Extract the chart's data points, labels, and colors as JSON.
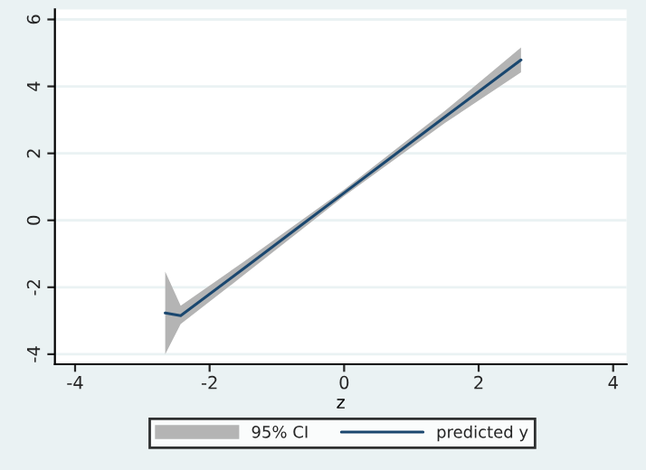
{
  "chart_data": {
    "type": "line",
    "xlabel": "z",
    "x": [
      -2.66,
      -2.43,
      -1.5,
      0,
      1.5,
      2.63
    ],
    "series": [
      {
        "name": "predicted y",
        "color": "#1a476f",
        "values": [
          -2.77,
          -2.85,
          -1.45,
          0.82,
          3.09,
          4.79
        ],
        "lower": [
          -4.0,
          -3.1,
          -1.65,
          0.72,
          2.91,
          4.42
        ],
        "upper": [
          -1.53,
          -2.55,
          -1.25,
          0.92,
          3.27,
          5.16
        ]
      }
    ],
    "annotations": [
      "95% CI"
    ],
    "xlim": [
      -4.3,
      4.2
    ],
    "xticks": [
      -4,
      -2,
      0,
      2,
      4
    ],
    "ylim": [
      -4.3,
      6.3
    ],
    "yticks": [
      -4,
      -2,
      0,
      2,
      4,
      6
    ],
    "grid": "y",
    "legend": "bottom",
    "marker": "none",
    "line_style": "solid"
  }
}
